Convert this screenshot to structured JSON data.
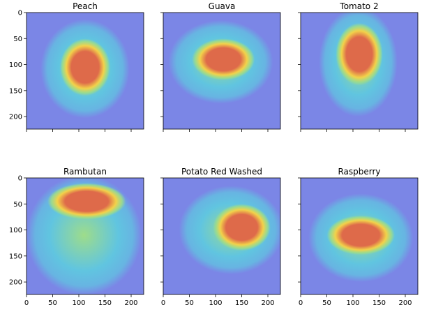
{
  "chart_data": {
    "type": "heatmap",
    "figure": "Grid of 6 saliency heatmaps overlaid on fruit images (jet colormap, semi-transparent)",
    "shared_axes": {
      "xlim": [
        0,
        224
      ],
      "ylim": [
        224,
        0
      ],
      "xticks": [
        0,
        50,
        100,
        150,
        200
      ],
      "yticks": [
        0,
        50,
        100,
        150,
        200
      ],
      "xtick_labels": [
        "0",
        "50",
        "100",
        "150",
        "200"
      ],
      "ytick_labels": [
        "0",
        "50",
        "100",
        "150",
        "200"
      ],
      "x_labels_on_bottom_row_only": true,
      "y_labels_on_left_column_only": true
    },
    "panels": [
      {
        "title": "Peach",
        "hotspot": {
          "cx": 112,
          "cy": 105,
          "rx": 48,
          "ry": 55
        },
        "halo": {
          "cx": 112,
          "cy": 108,
          "rx": 85,
          "ry": 95
        }
      },
      {
        "title": "Guava",
        "hotspot": {
          "cx": 115,
          "cy": 90,
          "rx": 60,
          "ry": 40
        },
        "halo": {
          "cx": 110,
          "cy": 95,
          "rx": 100,
          "ry": 80
        }
      },
      {
        "title": "Tomato 2",
        "hotspot": {
          "cx": 112,
          "cy": 80,
          "rx": 45,
          "ry": 60
        },
        "halo": {
          "cx": 110,
          "cy": 95,
          "rx": 75,
          "ry": 105
        }
      },
      {
        "title": "Rambutan",
        "hotspot": {
          "cx": 115,
          "cy": 45,
          "rx": 75,
          "ry": 35
        },
        "halo": {
          "cx": 110,
          "cy": 110,
          "rx": 110,
          "ry": 115
        }
      },
      {
        "title": "Potato Red Washed",
        "hotspot": {
          "cx": 150,
          "cy": 95,
          "rx": 55,
          "ry": 45
        },
        "halo": {
          "cx": 130,
          "cy": 100,
          "rx": 100,
          "ry": 85
        }
      },
      {
        "title": "Raspberry",
        "hotspot": {
          "cx": 115,
          "cy": 110,
          "rx": 65,
          "ry": 38
        },
        "halo": {
          "cx": 115,
          "cy": 115,
          "rx": 100,
          "ry": 85
        }
      }
    ],
    "colormap": {
      "background": "#7b86e6",
      "low": "#5fc8e0",
      "mid": "#9edc8a",
      "high_mid": "#f2d24a",
      "high": "#de6a4a"
    }
  }
}
